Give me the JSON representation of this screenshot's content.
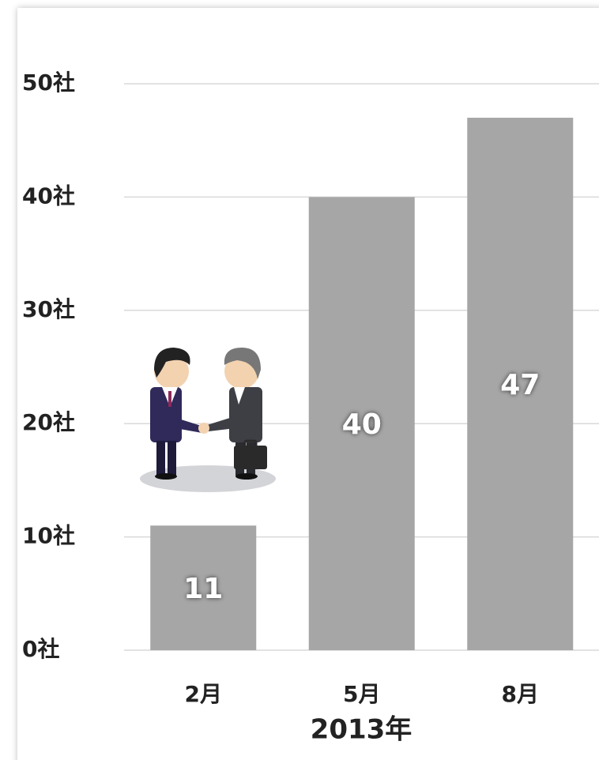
{
  "chart_data": {
    "type": "bar",
    "x_label": "2013年",
    "categories": [
      "2月",
      "5月",
      "8月"
    ],
    "values": [
      11,
      40,
      47
    ],
    "color": "#a6a6a6",
    "ylim": [
      0,
      50
    ],
    "yticks": [
      {
        "value": 0,
        "label": "0社"
      },
      {
        "value": 10,
        "label": "10社"
      },
      {
        "value": 20,
        "label": "20社"
      },
      {
        "value": 30,
        "label": "30社"
      },
      {
        "value": 40,
        "label": "40社"
      },
      {
        "value": 50,
        "label": "50社"
      }
    ],
    "grid": true
  }
}
